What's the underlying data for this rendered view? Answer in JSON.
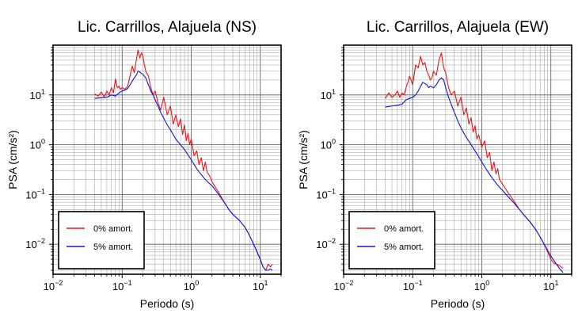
{
  "chart_data": [
    {
      "type": "line",
      "title": "Lic. Carrillos, Alajuela (NS)",
      "xlabel": "Periodo (s)",
      "ylabel": "PSA (cm/s²)",
      "x_scale": "log",
      "y_scale": "log",
      "xlim": [
        0.01,
        20
      ],
      "ylim": [
        0.0025,
        100
      ],
      "grid": true,
      "legend_position": "bottom-left",
      "x_ticks": [
        {
          "base": "10",
          "exp": "−2"
        },
        {
          "base": "10",
          "exp": "−1"
        },
        {
          "base": "10",
          "exp": "0"
        },
        {
          "base": "10",
          "exp": "1"
        }
      ],
      "y_ticks": [
        {
          "base": "10",
          "exp": "−2"
        },
        {
          "base": "10",
          "exp": "−1"
        },
        {
          "base": "10",
          "exp": "0"
        },
        {
          "base": "10",
          "exp": "1"
        }
      ],
      "series": [
        {
          "name": "0% amort.",
          "color": "#e8161b",
          "x": [
            0.04,
            0.045,
            0.05,
            0.055,
            0.06,
            0.065,
            0.07,
            0.075,
            0.08,
            0.085,
            0.09,
            0.095,
            0.1,
            0.11,
            0.12,
            0.13,
            0.14,
            0.15,
            0.16,
            0.17,
            0.18,
            0.19,
            0.2,
            0.21,
            0.22,
            0.24,
            0.26,
            0.28,
            0.3,
            0.33,
            0.36,
            0.4,
            0.45,
            0.5,
            0.55,
            0.6,
            0.65,
            0.7,
            0.75,
            0.8,
            0.85,
            0.9,
            0.95,
            1.0,
            1.1,
            1.2,
            1.3,
            1.4,
            1.5,
            1.6,
            1.7,
            1.8,
            1.9,
            2.0,
            2.5,
            3.0,
            3.5,
            4.0,
            5.0,
            6.0,
            7.0,
            8.0,
            9.0,
            10.0,
            11.0,
            12.0,
            13.0,
            14.0,
            15.0
          ],
          "y": [
            10.5,
            9.5,
            11.5,
            9,
            12,
            10,
            14,
            11,
            21,
            14,
            15,
            13,
            14,
            13,
            15,
            24,
            38,
            28,
            50,
            80,
            55,
            70,
            60,
            40,
            30,
            24,
            14,
            10,
            12,
            7,
            5,
            9,
            4,
            6,
            2.6,
            4,
            2.3,
            3.3,
            1.6,
            2.5,
            1.2,
            1.7,
            1.0,
            1.3,
            0.6,
            0.75,
            0.4,
            0.55,
            0.3,
            0.45,
            0.28,
            0.25,
            0.22,
            0.18,
            0.11,
            0.07,
            0.05,
            0.04,
            0.03,
            0.022,
            0.015,
            0.01,
            0.007,
            0.005,
            0.0035,
            0.003,
            0.004,
            0.0035,
            0.004
          ]
        },
        {
          "name": "5% amort.",
          "color": "#1016e0",
          "x": [
            0.04,
            0.05,
            0.06,
            0.07,
            0.08,
            0.09,
            0.1,
            0.11,
            0.12,
            0.13,
            0.14,
            0.15,
            0.16,
            0.17,
            0.18,
            0.19,
            0.2,
            0.22,
            0.24,
            0.26,
            0.28,
            0.3,
            0.33,
            0.36,
            0.4,
            0.45,
            0.5,
            0.55,
            0.6,
            0.7,
            0.8,
            0.9,
            1.0,
            1.2,
            1.4,
            1.6,
            1.8,
            2.0,
            2.5,
            3.0,
            3.5,
            4.0,
            5.0,
            6.0,
            7.0,
            8.0,
            9.0,
            10.0,
            11.0,
            12.0,
            13.0,
            14.0,
            15.0
          ],
          "y": [
            8.5,
            8.8,
            9,
            10,
            9.5,
            11,
            12,
            12.5,
            13.5,
            16,
            19,
            22,
            25,
            30,
            29,
            27,
            26,
            22,
            16,
            12,
            10,
            8,
            6,
            4.5,
            3.4,
            2.5,
            2.0,
            1.6,
            1.3,
            1.0,
            0.8,
            0.62,
            0.5,
            0.33,
            0.25,
            0.2,
            0.17,
            0.15,
            0.1,
            0.07,
            0.05,
            0.04,
            0.03,
            0.022,
            0.015,
            0.01,
            0.007,
            0.005,
            0.0035,
            0.003,
            0.003,
            0.0032,
            0.003
          ]
        }
      ]
    },
    {
      "type": "line",
      "title": "Lic. Carrillos, Alajuela (EW)",
      "xlabel": "Periodo (s)",
      "ylabel": "PSA (cm/s²)",
      "x_scale": "log",
      "y_scale": "log",
      "xlim": [
        0.01,
        20
      ],
      "ylim": [
        0.0025,
        100
      ],
      "grid": true,
      "legend_position": "bottom-left",
      "x_ticks": [
        {
          "base": "10",
          "exp": "−2"
        },
        {
          "base": "10",
          "exp": "−1"
        },
        {
          "base": "10",
          "exp": "0"
        },
        {
          "base": "10",
          "exp": "1"
        }
      ],
      "y_ticks": [
        {
          "base": "10",
          "exp": "−2"
        },
        {
          "base": "10",
          "exp": "−1"
        },
        {
          "base": "10",
          "exp": "0"
        },
        {
          "base": "10",
          "exp": "1"
        }
      ],
      "series": [
        {
          "name": "0% amort.",
          "color": "#e8161b",
          "x": [
            0.04,
            0.045,
            0.05,
            0.055,
            0.06,
            0.065,
            0.07,
            0.075,
            0.08,
            0.085,
            0.09,
            0.1,
            0.11,
            0.12,
            0.13,
            0.14,
            0.15,
            0.16,
            0.17,
            0.18,
            0.19,
            0.2,
            0.22,
            0.24,
            0.26,
            0.28,
            0.3,
            0.33,
            0.36,
            0.4,
            0.45,
            0.5,
            0.55,
            0.6,
            0.65,
            0.7,
            0.75,
            0.8,
            0.85,
            0.9,
            1.0,
            1.1,
            1.2,
            1.3,
            1.4,
            1.5,
            1.6,
            1.7,
            1.8,
            2.0,
            2.5,
            3.0,
            3.5,
            4.0,
            5.0,
            6.0,
            7.0,
            8.0,
            9.0,
            10.0,
            11.0,
            12.0,
            13.0,
            14.0,
            15.0
          ],
          "y": [
            8.5,
            11,
            9,
            10,
            12,
            9,
            11,
            10,
            14,
            18,
            24,
            16,
            40,
            35,
            60,
            40,
            45,
            30,
            25,
            20,
            22,
            30,
            25,
            50,
            70,
            35,
            28,
            14,
            10,
            12,
            6,
            9,
            4,
            5.5,
            2.6,
            3.5,
            1.8,
            2.4,
            1.3,
            1.6,
            0.9,
            1.2,
            0.55,
            0.7,
            0.3,
            0.45,
            0.26,
            0.33,
            0.2,
            0.16,
            0.1,
            0.07,
            0.05,
            0.04,
            0.028,
            0.02,
            0.014,
            0.01,
            0.007,
            0.005,
            0.0042,
            0.004,
            0.0038,
            0.0035,
            0.0033
          ]
        },
        {
          "name": "5% amort.",
          "color": "#1016e0",
          "x": [
            0.04,
            0.05,
            0.06,
            0.07,
            0.08,
            0.09,
            0.1,
            0.11,
            0.12,
            0.13,
            0.14,
            0.15,
            0.16,
            0.17,
            0.18,
            0.2,
            0.22,
            0.24,
            0.26,
            0.28,
            0.3,
            0.33,
            0.36,
            0.4,
            0.45,
            0.5,
            0.55,
            0.6,
            0.7,
            0.8,
            0.9,
            1.0,
            1.2,
            1.4,
            1.6,
            1.8,
            2.0,
            2.5,
            3.0,
            3.5,
            4.0,
            5.0,
            6.0,
            7.0,
            8.0,
            9.0,
            10.0,
            11.0,
            12.0,
            13.0,
            14.0,
            15.0
          ],
          "y": [
            5.7,
            6,
            6.2,
            6.5,
            8,
            8.5,
            9,
            10,
            12,
            15,
            18,
            17,
            16,
            14,
            15,
            14,
            16,
            20,
            22,
            20,
            14,
            9,
            6.5,
            4.5,
            3,
            2.2,
            1.7,
            1.4,
            1.0,
            0.75,
            0.58,
            0.45,
            0.3,
            0.22,
            0.17,
            0.14,
            0.12,
            0.085,
            0.065,
            0.05,
            0.04,
            0.028,
            0.02,
            0.014,
            0.01,
            0.0075,
            0.0058,
            0.0048,
            0.004,
            0.0034,
            0.003,
            0.0027
          ]
        }
      ]
    }
  ]
}
